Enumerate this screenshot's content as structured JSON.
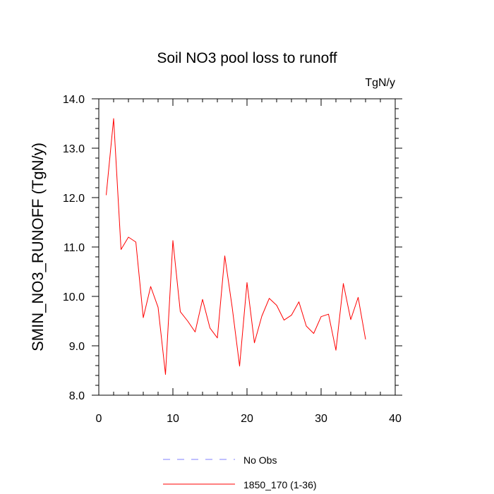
{
  "chart_data": {
    "type": "line",
    "title": "Soil NO3 pool loss to runoff",
    "units_label": "TgN/y",
    "ylabel": "SMIN_NO3_RUNOFF  (TgN/y)",
    "xlabel": "",
    "xlim": [
      0,
      40
    ],
    "ylim": [
      8.0,
      14.0
    ],
    "xticks": [
      0,
      10,
      20,
      30,
      40
    ],
    "xtick_labels": [
      "0",
      "10",
      "20",
      "30",
      "40"
    ],
    "yticks": [
      8.0,
      9.0,
      10.0,
      11.0,
      12.0,
      13.0,
      14.0
    ],
    "ytick_labels": [
      "8.0",
      "9.0",
      "10.0",
      "11.0",
      "12.0",
      "13.0",
      "14.0"
    ],
    "grid": false,
    "legend_position": "bottom",
    "series": [
      {
        "name": "1850_170 (1-36)",
        "color": "#ff0000",
        "style": "solid",
        "x": [
          1,
          2,
          3,
          4,
          5,
          6,
          7,
          8,
          9,
          10,
          11,
          12,
          13,
          14,
          15,
          16,
          17,
          18,
          19,
          20,
          21,
          22,
          23,
          24,
          25,
          26,
          27,
          28,
          29,
          30,
          31,
          32,
          33,
          34,
          35,
          36
        ],
        "values": [
          12.05,
          13.6,
          10.95,
          11.2,
          11.1,
          9.57,
          10.2,
          9.78,
          8.42,
          11.13,
          9.69,
          9.5,
          9.28,
          9.94,
          9.36,
          9.16,
          10.82,
          9.78,
          8.59,
          10.28,
          9.06,
          9.6,
          9.96,
          9.82,
          9.52,
          9.62,
          9.89,
          9.4,
          9.25,
          9.59,
          9.64,
          8.91,
          10.26,
          9.53,
          9.98,
          9.13
        ]
      }
    ],
    "legend": [
      {
        "label": "No Obs",
        "color": "#8080ff",
        "style": "dashed"
      },
      {
        "label": "1850_170 (1-36)",
        "color": "#ff0000",
        "style": "solid"
      }
    ]
  }
}
